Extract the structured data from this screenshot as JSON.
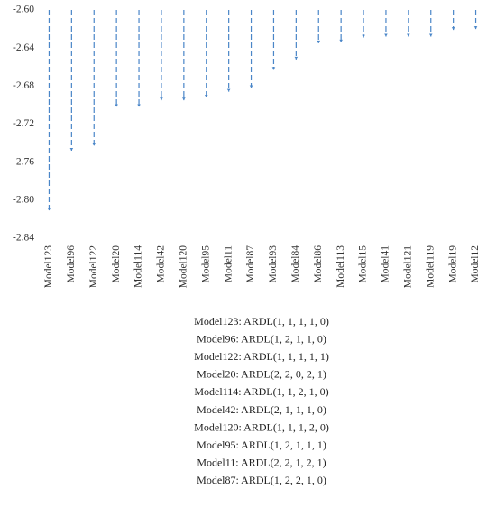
{
  "chart_data": {
    "type": "bar",
    "categories": [
      "Model123",
      "Model96",
      "Model122",
      "Model20",
      "Model114",
      "Model42",
      "Model120",
      "Model95",
      "Model11",
      "Model87",
      "Model93",
      "Model84",
      "Model86",
      "Model113",
      "Model15",
      "Model41",
      "Model121",
      "Model119",
      "Model19",
      "Model12"
    ],
    "values": [
      -2.811,
      -2.748,
      -2.743,
      -2.702,
      -2.702,
      -2.695,
      -2.695,
      -2.692,
      -2.686,
      -2.682,
      -2.663,
      -2.652,
      -2.635,
      -2.634,
      -2.629,
      -2.628,
      -2.628,
      -2.628,
      -2.621,
      -2.62
    ],
    "color": "#4a86c8",
    "ylim": [
      -2.84,
      -2.6
    ],
    "yticks": [
      {
        "value": -2.84,
        "label": "-2.84"
      },
      {
        "value": -2.8,
        "label": "-2.80"
      },
      {
        "value": -2.76,
        "label": "-2.76"
      },
      {
        "value": -2.72,
        "label": "-2.72"
      },
      {
        "value": -2.68,
        "label": "-2.68"
      },
      {
        "value": -2.64,
        "label": "-2.64"
      },
      {
        "value": -2.6,
        "label": "-2.60"
      }
    ],
    "annotations": [
      "Model123: ARDL(1, 1, 1, 1, 0)",
      "Model96: ARDL(1, 2, 1, 1, 0)",
      "Model122: ARDL(1, 1, 1, 1, 1)",
      "Model20: ARDL(2, 2, 0, 2, 1)",
      "Model114: ARDL(1, 1, 2, 1, 0)",
      "Model42: ARDL(2, 1, 1, 1, 0)",
      "Model120: ARDL(1, 1, 1, 2, 0)",
      "Model95: ARDL(1, 2, 1, 1, 1)",
      "Model11: ARDL(2, 2, 1, 2, 1)",
      "Model87: ARDL(1, 2, 2, 1, 0)"
    ]
  }
}
